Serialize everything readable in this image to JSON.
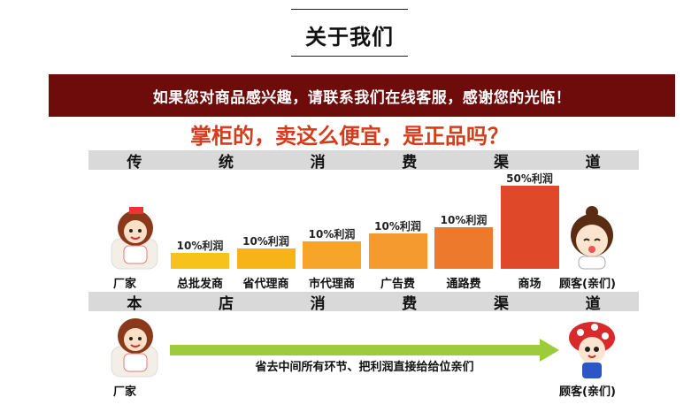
{
  "title": "关于我们",
  "banner_text": "如果您对商品感兴趣，请联系我们在线客服，感谢您的光临！",
  "question": "掌柜的，卖这么便宜，是正品吗？",
  "traditional": {
    "header_chars": [
      "传",
      "统",
      "消",
      "费",
      "渠",
      "道"
    ],
    "left_label": "厂家",
    "right_label": "顾客(亲们)"
  },
  "chart_data": {
    "type": "bar",
    "categories": [
      "总批发商",
      "省代理商",
      "市代理商",
      "广告费",
      "通路费",
      "商场"
    ],
    "values": [
      10,
      10,
      10,
      10,
      10,
      50
    ],
    "value_labels": [
      "10%利润",
      "10%利润",
      "10%利润",
      "10%利润",
      "10%利润",
      "50%利润"
    ],
    "colors": [
      "#f7c21a",
      "#f7b416",
      "#f6a52a",
      "#f49a2e",
      "#ed7a2c",
      "#e0482a"
    ]
  },
  "store": {
    "header_chars": [
      "本",
      "店",
      "消",
      "费",
      "渠",
      "道"
    ],
    "left_label": "厂家",
    "right_label": "顾客(亲们)",
    "arrow_text": "省去中间所有环节、把利润直接给给位亲们"
  }
}
